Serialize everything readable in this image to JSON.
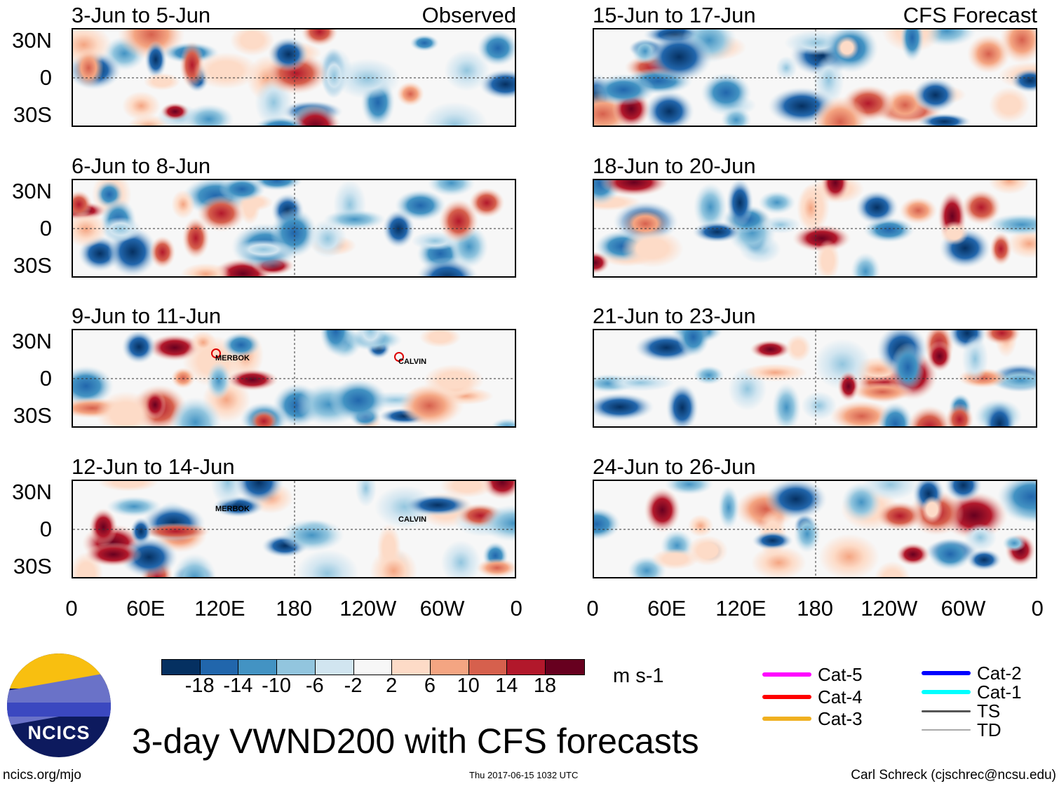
{
  "panels": [
    {
      "title": "3-Jun to 5-Jun",
      "label": "Observed",
      "col": 0,
      "row": 0
    },
    {
      "title": "6-Jun to 8-Jun",
      "col": 0,
      "row": 1
    },
    {
      "title": "9-Jun to 11-Jun",
      "col": 0,
      "row": 2,
      "storms": [
        "MERBOK",
        "CALVIN"
      ]
    },
    {
      "title": "12-Jun to 14-Jun",
      "col": 0,
      "row": 3,
      "storms": [
        "MERBOK",
        "CALVIN"
      ]
    },
    {
      "title": "15-Jun to 17-Jun",
      "label": "CFS Forecast",
      "col": 1,
      "row": 0
    },
    {
      "title": "18-Jun to 20-Jun",
      "col": 1,
      "row": 1
    },
    {
      "title": "21-Jun to 23-Jun",
      "col": 1,
      "row": 2
    },
    {
      "title": "24-Jun to 26-Jun",
      "col": 1,
      "row": 3
    }
  ],
  "lat_labels": [
    "30N",
    "0",
    "30S"
  ],
  "lon_labels": [
    "0",
    "60E",
    "120E",
    "180",
    "120W",
    "60W",
    "0"
  ],
  "colorbar": {
    "colors": [
      "#053061",
      "#2166ac",
      "#4393c3",
      "#92c5de",
      "#d1e5f0",
      "#f7f7f7",
      "#fddbc7",
      "#f4a582",
      "#d6604d",
      "#b2182b",
      "#67001f"
    ],
    "labels": [
      "-18",
      "-14",
      "-10",
      "-6",
      "-2",
      "2",
      "6",
      "10",
      "14",
      "18"
    ],
    "units": "m s-1"
  },
  "legend": [
    {
      "label": "Cat-5",
      "color": "#ff00ff"
    },
    {
      "label": "Cat-4",
      "color": "#ff0000"
    },
    {
      "label": "Cat-3",
      "color": "#f0b020"
    },
    {
      "label": "Cat-2",
      "color": "#0000ff"
    },
    {
      "label": "Cat-1",
      "color": "#00ffff"
    },
    {
      "label": "TS",
      "color": "#555555"
    },
    {
      "label": "TD",
      "color": "#aaaaaa"
    }
  ],
  "title": "3-day VWND200 with CFS forecasts",
  "logo_text": "NCICS",
  "footer": {
    "left": "ncics.org/mjo",
    "center": "Thu 2017-06-15 1032 UTC",
    "right": "Carl Schreck (cjschrec@ncsu.edu)"
  }
}
